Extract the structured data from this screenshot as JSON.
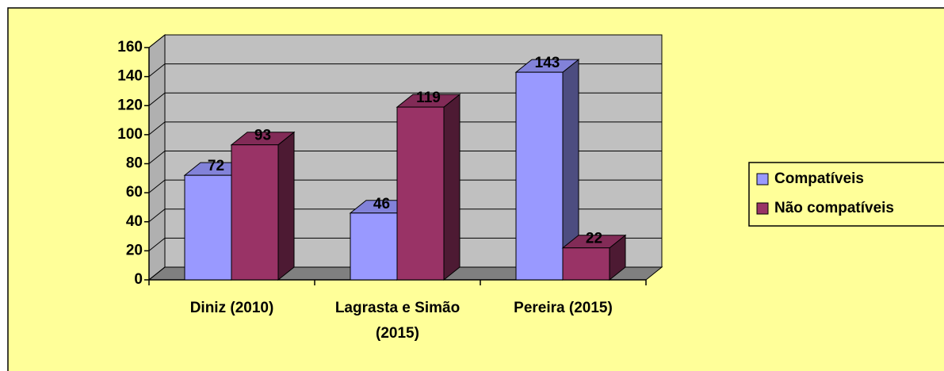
{
  "chart_data": {
    "type": "bar",
    "three_d": true,
    "categories": [
      "Diniz (2010)",
      "Lagrasta e Simão (2015)",
      "Pereira (2015)"
    ],
    "series": [
      {
        "name": "Compatíveis",
        "color": "#9999ff",
        "values": [
          72,
          46,
          143
        ]
      },
      {
        "name": "Não compatíveis",
        "color": "#993366",
        "values": [
          93,
          119,
          22
        ]
      }
    ],
    "ylim": [
      0,
      160
    ],
    "yticks": [
      0,
      20,
      40,
      60,
      80,
      100,
      120,
      140,
      160
    ],
    "grid": true,
    "legend": "right",
    "data_labels": true
  }
}
